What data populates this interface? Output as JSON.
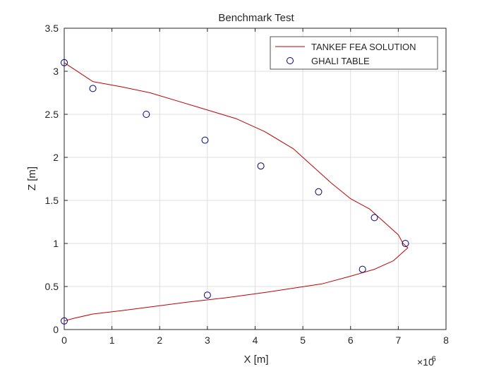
{
  "chart_data": {
    "type": "line",
    "title": "Benchmark Test",
    "xlabel": "X [m]",
    "ylabel": "Z [m]",
    "x_exponent_base": "×10",
    "x_exponent_power": "-6",
    "x_scale": 1e-06,
    "xlim": [
      0,
      8
    ],
    "ylim": [
      0,
      3.5
    ],
    "xticks": [
      0,
      1,
      2,
      3,
      4,
      5,
      6,
      7,
      8
    ],
    "yticks": [
      0,
      0.5,
      1,
      1.5,
      2,
      2.5,
      3,
      3.5
    ],
    "xtick_labels": [
      "0",
      "1",
      "2",
      "3",
      "4",
      "5",
      "6",
      "7",
      "8"
    ],
    "ytick_labels": [
      "0",
      "0.5",
      "1",
      "1.5",
      "2",
      "2.5",
      "3",
      "3.5"
    ],
    "grid": true,
    "legend_position": "top-right",
    "series": [
      {
        "name": "TANKEF FEA SOLUTION",
        "kind": "line",
        "color": "#c00000",
        "x": [
          0,
          0.6,
          1.2,
          1.8,
          2.4,
          3.0,
          3.6,
          4.2,
          4.8,
          5.2,
          5.6,
          6.0,
          6.4,
          6.7,
          7.0,
          7.1,
          7.2,
          7.1,
          6.9,
          6.5,
          6.0,
          5.4,
          4.8,
          4.2,
          3.4,
          2.6,
          1.9,
          1.2,
          0.6,
          0.2,
          0
        ],
        "y": [
          3.1,
          2.88,
          2.82,
          2.75,
          2.65,
          2.55,
          2.45,
          2.3,
          2.1,
          1.9,
          1.7,
          1.52,
          1.4,
          1.25,
          1.1,
          1.0,
          0.95,
          0.9,
          0.8,
          0.7,
          0.62,
          0.53,
          0.48,
          0.43,
          0.37,
          0.32,
          0.27,
          0.22,
          0.18,
          0.13,
          0.1
        ]
      },
      {
        "name": "GHALI TABLE",
        "kind": "marker",
        "color": "#00007f",
        "x": [
          0,
          0.6,
          1.72,
          2.95,
          4.12,
          5.33,
          6.5,
          7.15,
          6.25,
          3.0,
          0
        ],
        "y": [
          3.1,
          2.8,
          2.5,
          2.2,
          1.9,
          1.6,
          1.3,
          1.0,
          0.7,
          0.4,
          0.1
        ]
      }
    ]
  }
}
